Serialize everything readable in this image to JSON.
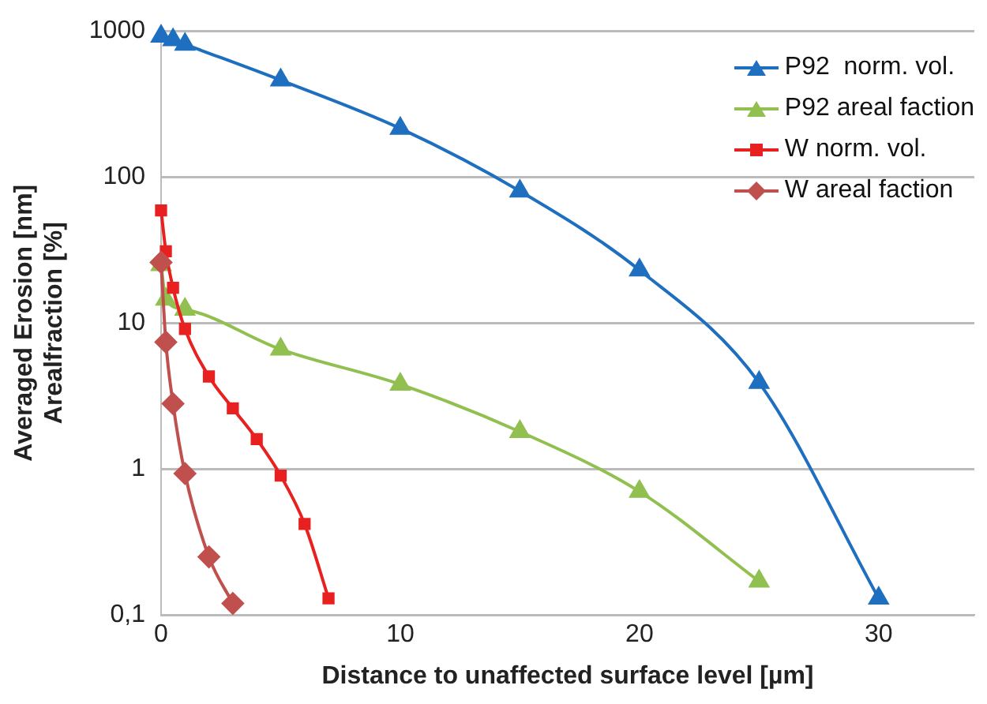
{
  "chart_data": {
    "type": "line",
    "xlabel": "Distance to unaffected surface level [µm]",
    "ylabel": "Averaged Erosion [nm]\nArealfraction [%]",
    "log": "y",
    "grid": "y",
    "legend": "top right",
    "xlim": [
      0,
      34
    ],
    "xticks": [
      0,
      10,
      20,
      30
    ],
    "ylim": [
      0.1,
      1000
    ],
    "yticks": [
      {
        "value": 0.1,
        "label": "0,1"
      },
      1,
      10,
      100,
      1000
    ],
    "series": [
      {
        "name": "P92  norm. vol.",
        "color": "#1f6fc0",
        "marker": "triangle",
        "x": [
          0,
          0.5,
          1,
          5,
          10,
          15,
          20,
          25,
          30
        ],
        "values": [
          920,
          870,
          810,
          460,
          215,
          80,
          23,
          3.9,
          0.13
        ]
      },
      {
        "name": "P92 areal faction",
        "color": "#92c050",
        "marker": "triangle",
        "x": [
          0,
          0.2,
          1,
          5,
          10,
          15,
          20,
          25
        ],
        "values": [
          25,
          14.5,
          12.4,
          6.6,
          3.8,
          1.8,
          0.7,
          0.17
        ]
      },
      {
        "name": "W norm. vol.",
        "color": "#e82020",
        "marker": "square",
        "x": [
          0,
          0.2,
          0.5,
          1,
          2,
          3,
          4,
          5,
          6,
          7
        ],
        "values": [
          59,
          31,
          17.4,
          9.1,
          4.3,
          2.6,
          1.6,
          0.9,
          0.42,
          0.13
        ]
      },
      {
        "name": "W areal faction",
        "color": "#c0504d",
        "marker": "diamond",
        "x": [
          0,
          0.2,
          0.5,
          1,
          2,
          3
        ],
        "values": [
          26,
          7.4,
          2.8,
          0.93,
          0.25,
          0.12
        ]
      }
    ]
  }
}
